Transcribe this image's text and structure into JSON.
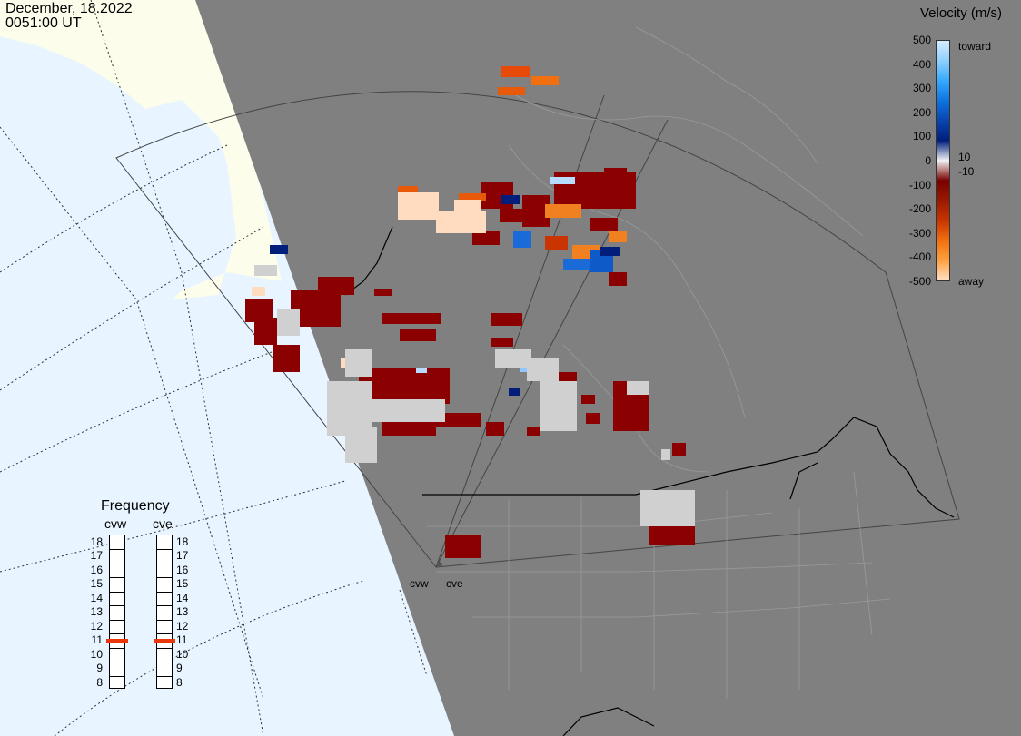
{
  "header": {
    "date": "December, 18.2022",
    "time": "0051:00 UT"
  },
  "legend": {
    "title": "Velocity (m/s)",
    "ticks": [
      "500",
      "400",
      "300",
      "200",
      "100",
      "0",
      "-100",
      "-200",
      "-300",
      "-400",
      "-500"
    ],
    "toward_label": "toward",
    "away_label": "away",
    "small_pos": "10",
    "small_neg": "-10",
    "colors": [
      "#d6ecff",
      "#8fd0ff",
      "#36a9ff",
      "#0d74e0",
      "#0a44b0",
      "#001e7a",
      "#f2f2f2",
      "#7a0000",
      "#9a1a00",
      "#c93400",
      "#f07010",
      "#ffa040",
      "#ffe0c4"
    ]
  },
  "frequency": {
    "title": "Frequency",
    "stations": [
      {
        "name": "cvw",
        "selected": 11
      },
      {
        "name": "cve",
        "selected": 11
      }
    ],
    "levels": [
      "18",
      "17",
      "16",
      "15",
      "14",
      "13",
      "12",
      "11",
      "10",
      "9",
      "8"
    ],
    "marker_color": "#e8380c"
  },
  "sites": [
    "cvw",
    "cve"
  ],
  "map_colors": {
    "ocean": "#e8f4ff",
    "land_light": "#fdfdec",
    "shade": "#808080",
    "border": "#000000",
    "grid": "#444444"
  }
}
